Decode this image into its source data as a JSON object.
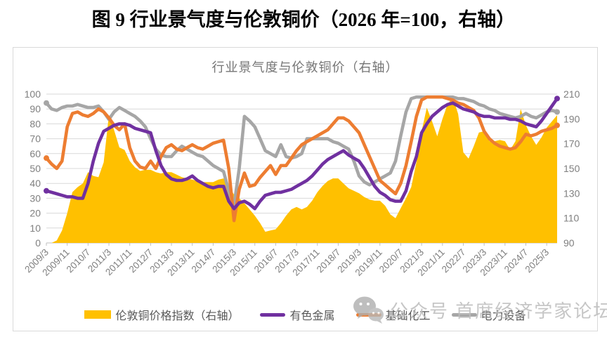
{
  "page": {
    "title": "图 9 行业景气度与伦敦铜价（2026 年=100，右轴）"
  },
  "watermark": {
    "icon": "wechat-icon",
    "text": "公众号 首席经济学家论坛"
  },
  "chart_data": {
    "type": "combo-area-line",
    "title": "行业景气度与伦敦铜价（右轴）",
    "x_start": "2009/3",
    "x_step_months": 2,
    "x_total_months": 196,
    "x_tick_step_months": 8,
    "x_tick_labels": [
      "2009/3",
      "2009/11",
      "2010/7",
      "2011/3",
      "2011/11",
      "2012/7",
      "2013/3",
      "2013/11",
      "2014/7",
      "2015/3",
      "2015/11",
      "2016/7",
      "2017/3",
      "2017/11",
      "2018/7",
      "2019/3",
      "2019/11",
      "2020/7",
      "2021/3",
      "2021/11",
      "2022/7",
      "2023/3",
      "2023/11",
      "2024/7",
      "2025/3"
    ],
    "left_axis": {
      "min": 0,
      "max": 100,
      "step": 10
    },
    "right_axis": {
      "min": 90,
      "max": 210,
      "step": 20
    },
    "grid": true,
    "legend_position": "bottom",
    "colors": {
      "grid": "#d9d9d9",
      "axis": "#bfbfbf",
      "tick_text": "#7f7f7f"
    },
    "series": [
      {
        "name": "伦敦铜价格指数（右轴）",
        "type": "area",
        "axis": "right",
        "color": "#FFC000",
        "values": [
          90,
          90,
          92,
          100,
          114,
          131,
          135,
          138,
          147,
          144,
          143,
          155,
          193,
          181,
          167,
          165,
          156,
          151,
          148,
          149,
          149,
          147,
          146,
          147,
          147,
          145,
          143,
          142,
          141,
          140,
          139,
          139,
          139,
          141,
          142,
          136,
          129,
          126,
          122,
          117,
          112,
          106,
          99,
          100,
          101,
          106,
          112,
          117,
          119,
          117,
          119,
          124,
          131,
          136,
          140,
          142,
          142,
          138,
          134,
          132,
          130,
          127,
          125,
          124,
          124,
          120,
          113,
          110,
          118,
          126,
          135,
          155,
          180,
          199,
          188,
          176,
          190,
          202,
          207,
          194,
          163,
          158,
          168,
          179,
          180,
          172,
          172,
          173,
          172,
          165,
          172,
          198,
          185,
          176,
          169,
          175,
          183,
          188,
          193
        ]
      },
      {
        "name": "有色金属",
        "type": "line",
        "axis": "left",
        "color": "#7030A0",
        "values": [
          35,
          34,
          33,
          32,
          31,
          31,
          30,
          30,
          40,
          55,
          67,
          75,
          77,
          79,
          80,
          80,
          79,
          77,
          76,
          75,
          74,
          62,
          52,
          46,
          43,
          42,
          42,
          43,
          45,
          42,
          40,
          38,
          37,
          38,
          38,
          28,
          23,
          27,
          28,
          26,
          23,
          28,
          32,
          33,
          34,
          34,
          35,
          36,
          38,
          40,
          42,
          45,
          49,
          53,
          56,
          58,
          60,
          62,
          59,
          57,
          55,
          50,
          44,
          38,
          34,
          32,
          29,
          28,
          28,
          35,
          48,
          58,
          74,
          80,
          85,
          88,
          91,
          93,
          94,
          92,
          90,
          89,
          88,
          86,
          85,
          85,
          84,
          84,
          84,
          83,
          83,
          82,
          80,
          79,
          78,
          82,
          87,
          92,
          97
        ]
      },
      {
        "name": "基础化工",
        "type": "line",
        "axis": "left",
        "color": "#ED7D31",
        "values": [
          57,
          53,
          50,
          55,
          78,
          87,
          88,
          86,
          85,
          87,
          90,
          88,
          84,
          79,
          76,
          80,
          64,
          55,
          51,
          50,
          55,
          50,
          58,
          64,
          66,
          63,
          62,
          64,
          66,
          64,
          63,
          65,
          67,
          68,
          69,
          50,
          15,
          36,
          47,
          38,
          39,
          44,
          48,
          52,
          46,
          52,
          52,
          57,
          62,
          66,
          68,
          70,
          72,
          74,
          76,
          80,
          84,
          84,
          82,
          78,
          74,
          66,
          58,
          50,
          42,
          39,
          36,
          33,
          40,
          52,
          68,
          85,
          96,
          98,
          98,
          98,
          98,
          97,
          96,
          94,
          93,
          91,
          89,
          84,
          75,
          70,
          67,
          65,
          64,
          63,
          64,
          68,
          73,
          72,
          73,
          75,
          76,
          77,
          79
        ]
      },
      {
        "name": "电力设备",
        "type": "line",
        "axis": "left",
        "color": "#A6A6A6",
        "values": [
          94,
          90,
          89,
          91,
          92,
          92,
          93,
          92,
          91,
          91,
          92,
          88,
          83,
          88,
          91,
          89,
          87,
          85,
          82,
          78,
          70,
          63,
          59,
          58,
          58,
          62,
          65,
          63,
          61,
          59,
          58,
          55,
          52,
          50,
          48,
          35,
          25,
          50,
          85,
          82,
          78,
          70,
          62,
          60,
          58,
          66,
          58,
          57,
          58,
          60,
          70,
          70,
          70,
          70,
          70,
          68,
          67,
          65,
          63,
          55,
          45,
          41,
          39,
          41,
          43,
          45,
          47,
          55,
          72,
          88,
          97,
          98,
          98,
          98,
          98,
          98,
          98,
          98,
          98,
          97,
          97,
          96,
          95,
          93,
          92,
          90,
          89,
          87,
          86,
          85,
          84,
          85,
          87,
          85,
          84,
          86,
          88,
          89,
          88
        ]
      }
    ]
  }
}
